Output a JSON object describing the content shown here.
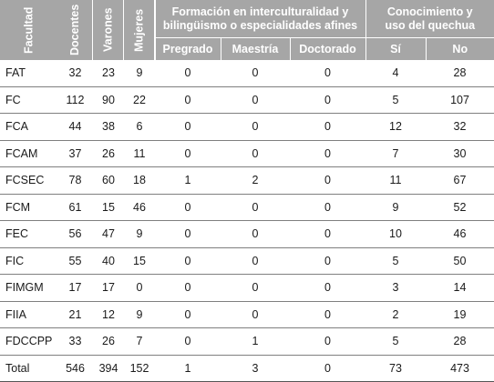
{
  "header": {
    "facultad": "Facultad",
    "docentes": "Docentes",
    "varones": "Varones",
    "mujeres": "Mujeres",
    "formacion_line1": "Formación en interculturalidad y",
    "formacion_line2": "bilingüismo o especialidades afines",
    "conocimiento_line1": "Conocimiento y",
    "conocimiento_line2": "uso del quechua",
    "pregrado": "Pregrado",
    "maestria": "Maestría",
    "doctorado": "Doctorado",
    "si": "Sí",
    "no": "No"
  },
  "rows": [
    [
      "FAT",
      "32",
      "23",
      "9",
      "0",
      "0",
      "0",
      "4",
      "28"
    ],
    [
      "FC",
      "112",
      "90",
      "22",
      "0",
      "0",
      "0",
      "5",
      "107"
    ],
    [
      "FCA",
      "44",
      "38",
      "6",
      "0",
      "0",
      "0",
      "12",
      "32"
    ],
    [
      "FCAM",
      "37",
      "26",
      "11",
      "0",
      "0",
      "0",
      "7",
      "30"
    ],
    [
      "FCSEC",
      "78",
      "60",
      "18",
      "1",
      "2",
      "0",
      "11",
      "67"
    ],
    [
      "FCM",
      "61",
      "15",
      "46",
      "0",
      "0",
      "0",
      "9",
      "52"
    ],
    [
      "FEC",
      "56",
      "47",
      "9",
      "0",
      "0",
      "0",
      "10",
      "46"
    ],
    [
      "FIC",
      "55",
      "40",
      "15",
      "0",
      "0",
      "0",
      "5",
      "50"
    ],
    [
      "FIMGM",
      "17",
      "17",
      "0",
      "0",
      "0",
      "0",
      "3",
      "14"
    ],
    [
      "FIIA",
      "21",
      "12",
      "9",
      "0",
      "0",
      "0",
      "2",
      "19"
    ],
    [
      "FDCCPP",
      "33",
      "26",
      "7",
      "0",
      "1",
      "0",
      "5",
      "28"
    ],
    [
      "Total",
      "546",
      "394",
      "152",
      "1",
      "3",
      "0",
      "73",
      "473"
    ]
  ]
}
